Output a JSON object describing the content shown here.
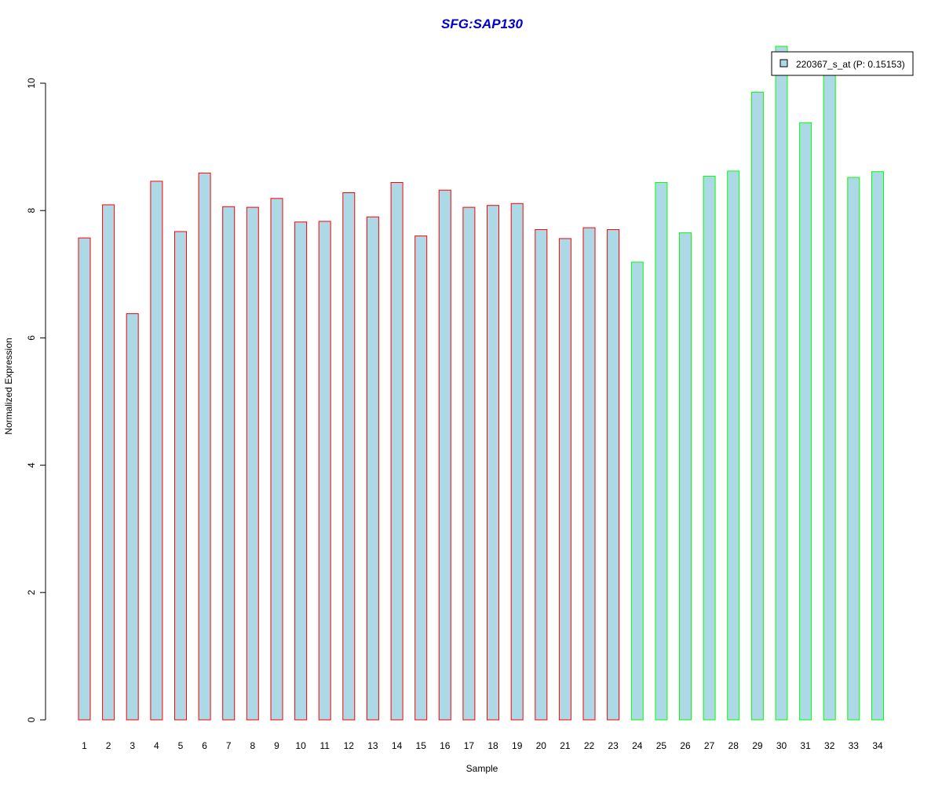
{
  "chart_data": {
    "type": "bar",
    "title": "SFG:SAP130",
    "xlabel": "Sample",
    "ylabel": "Normalized Expression",
    "ylim": [
      0,
      10.7
    ],
    "yticks": [
      0,
      2,
      4,
      6,
      8,
      10
    ],
    "categories": [
      "1",
      "2",
      "3",
      "4",
      "5",
      "6",
      "7",
      "8",
      "9",
      "10",
      "11",
      "12",
      "13",
      "14",
      "15",
      "16",
      "17",
      "18",
      "19",
      "20",
      "21",
      "22",
      "23",
      "24",
      "25",
      "26",
      "27",
      "28",
      "29",
      "30",
      "31",
      "32",
      "33",
      "34"
    ],
    "values": [
      7.57,
      8.09,
      6.38,
      8.46,
      7.67,
      8.59,
      8.06,
      8.05,
      8.19,
      7.82,
      7.83,
      8.28,
      7.9,
      8.44,
      7.6,
      8.32,
      8.05,
      8.08,
      8.11,
      7.7,
      7.56,
      7.73,
      7.7,
      7.19,
      8.44,
      7.65,
      8.54,
      8.62,
      9.86,
      10.58,
      9.38,
      10.25,
      8.52,
      8.61
    ],
    "groups": [
      "red",
      "red",
      "red",
      "red",
      "red",
      "red",
      "red",
      "red",
      "red",
      "red",
      "red",
      "red",
      "red",
      "red",
      "red",
      "red",
      "red",
      "red",
      "red",
      "red",
      "red",
      "red",
      "red",
      "green",
      "green",
      "green",
      "green",
      "green",
      "green",
      "green",
      "green",
      "green",
      "green",
      "green"
    ],
    "legend": {
      "label": "220367_s_at (P: 0.15153)",
      "position": "top-right"
    },
    "colors": {
      "fill": "#add8e6",
      "border_red": "#ff0000",
      "border_green": "#00ff00",
      "title": "#0000cd"
    },
    "grid": false
  }
}
